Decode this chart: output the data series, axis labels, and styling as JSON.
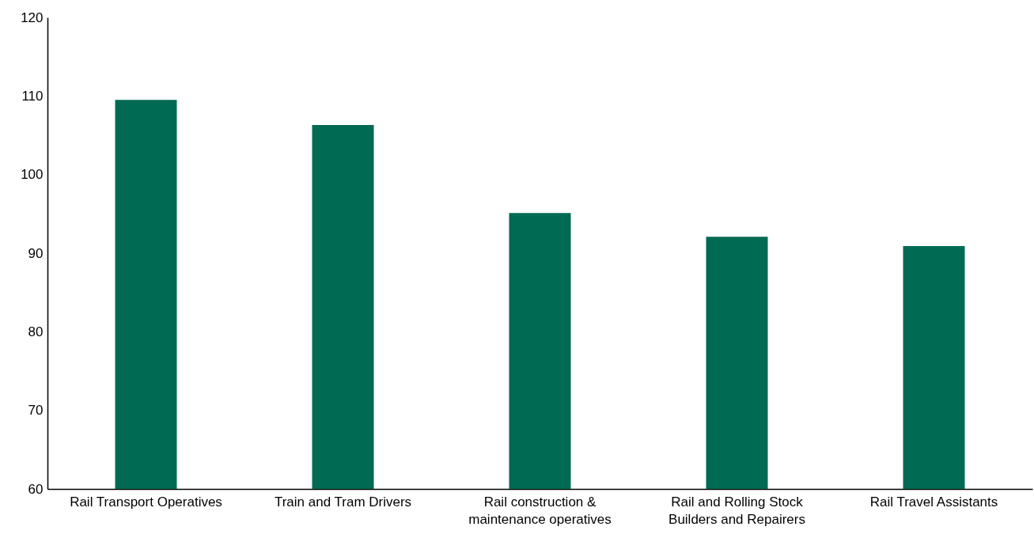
{
  "chart_data": {
    "type": "bar",
    "categories": [
      "Rail Transport Operatives",
      "Train and Tram Drivers",
      "Rail construction & maintenance operatives",
      "Rail and Rolling Stock Builders and Repairers",
      "Rail Travel Assistants"
    ],
    "values": [
      109.5,
      106.3,
      95.1,
      92.1,
      90.9
    ],
    "color": "#006a52",
    "ylim": [
      60,
      120
    ],
    "yticks": [
      60,
      70,
      80,
      90,
      100,
      110,
      120
    ],
    "grid": false
  }
}
